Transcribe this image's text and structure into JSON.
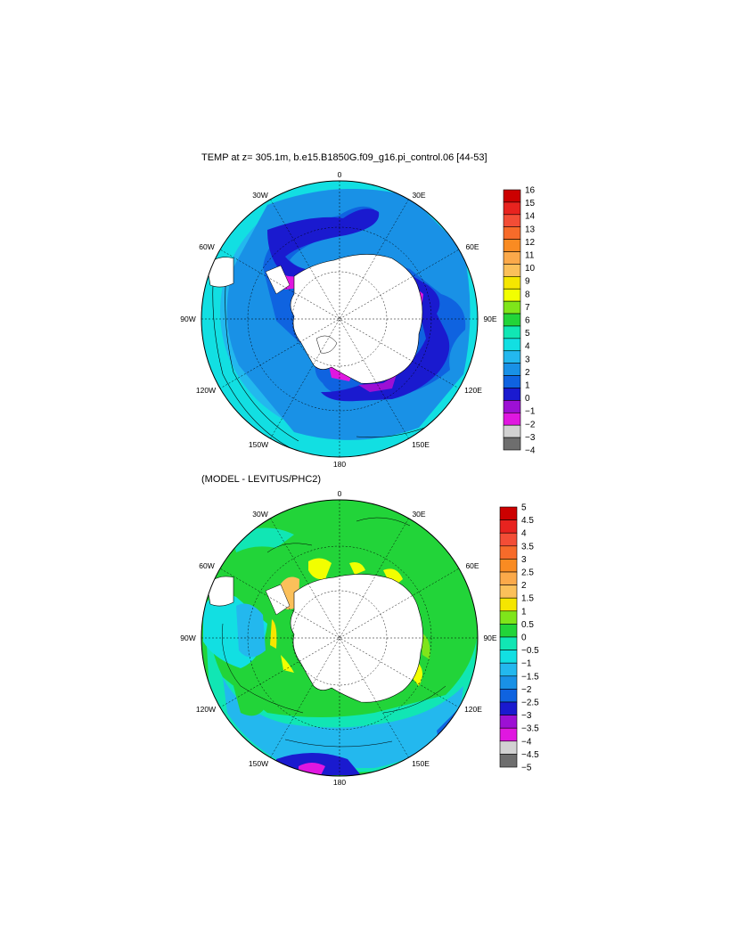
{
  "panel1": {
    "title": "TEMP at z= 305.1m, b.e15.B1850G.f09_g16.pi_control.06 [44-53]",
    "lon_labels": [
      "0",
      "30E",
      "60E",
      "90E",
      "120E",
      "150E",
      "180",
      "150W",
      "120W",
      "90W",
      "60W",
      "30W"
    ],
    "colorbar": {
      "labels": [
        "16",
        "15",
        "14",
        "13",
        "12",
        "11",
        "10",
        "9",
        "8",
        "7",
        "6",
        "5",
        "4",
        "3",
        "2",
        "1",
        "0",
        "−1",
        "−2",
        "−3",
        "−4"
      ],
      "colors": [
        "#cc0000",
        "#e8231f",
        "#f34d36",
        "#f76b2a",
        "#f98b22",
        "#fba94a",
        "#fbc05a",
        "#f5e600",
        "#f2ff00",
        "#7fe51a",
        "#22d439",
        "#11e6b4",
        "#12dfe2",
        "#23b8ee",
        "#1991e6",
        "#0f63e0",
        "#1a1acf",
        "#9d10d4",
        "#e017e0",
        "#d2d2d2",
        "#6e6e6e"
      ]
    }
  },
  "panel2": {
    "title": "(MODEL - LEVITUS/PHC2)",
    "lon_labels": [
      "0",
      "30E",
      "60E",
      "90E",
      "120E",
      "150E",
      "180",
      "150W",
      "120W",
      "90W",
      "60W",
      "30W"
    ],
    "colorbar": {
      "labels": [
        "5",
        "4.5",
        "4",
        "3.5",
        "3",
        "2.5",
        "2",
        "1.5",
        "1",
        "0.5",
        "0",
        "−0.5",
        "−1",
        "−1.5",
        "−2",
        "−2.5",
        "−3",
        "−3.5",
        "−4",
        "−4.5",
        "−5"
      ],
      "colors": [
        "#cc0000",
        "#e8231f",
        "#f34d36",
        "#f76b2a",
        "#f98b22",
        "#fba94a",
        "#fbc05a",
        "#f5e600",
        "#7fe51a",
        "#22d439",
        "#11e6b4",
        "#12dfe2",
        "#23b8ee",
        "#1991e6",
        "#0f63e0",
        "#1a1acf",
        "#9d10d4",
        "#e017e0",
        "#d2d2d2",
        "#6e6e6e"
      ]
    }
  },
  "colors": {
    "continent": "#ffffff",
    "ocean_deep_blue": "#1a1acf",
    "ocean_mid_blue": "#1991e6",
    "ocean_light_blue": "#23b8ee",
    "anomaly_green": "#22d439",
    "anomaly_yellow": "#f2ff00"
  }
}
